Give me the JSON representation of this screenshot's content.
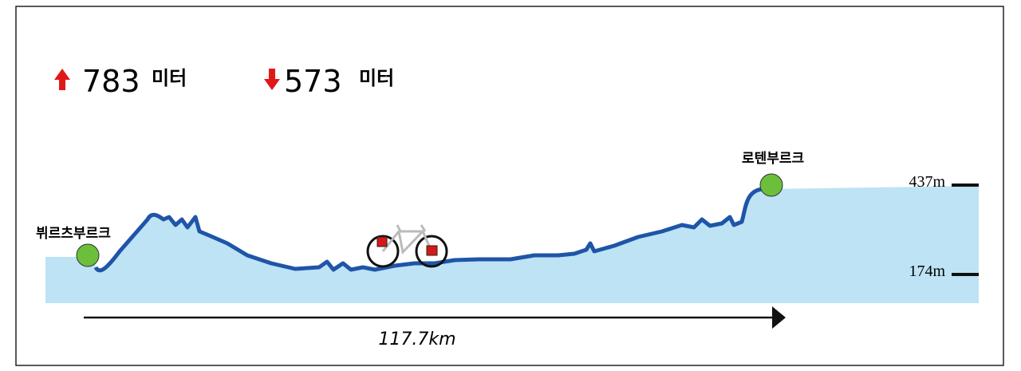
{
  "stats": {
    "ascent": {
      "value": "783",
      "unit": "미터"
    },
    "descent": {
      "value": "573",
      "unit": "미터"
    }
  },
  "route": {
    "start": "뷔르츠부르크",
    "end": "로텐부르크",
    "distance": "117.7km"
  },
  "elevation_ticks": [
    "437m",
    "174m"
  ]
}
